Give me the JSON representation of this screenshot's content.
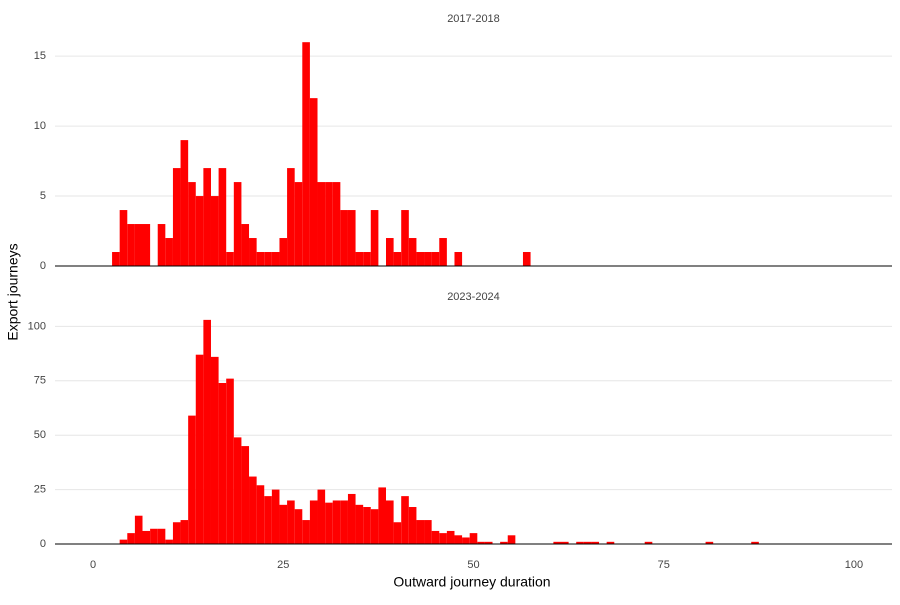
{
  "chart_data": {
    "type": "histogram",
    "xlabel": "Outward journey duration",
    "ylabel": "Export journeys",
    "color": "#ff0000",
    "grid": true,
    "xlim": [
      -5,
      105
    ],
    "xticks": [
      0,
      25,
      50,
      75,
      100
    ],
    "facets": [
      {
        "title": "2017-2018",
        "ylim": [
          0,
          16.8
        ],
        "yticks": [
          0,
          5,
          10,
          15
        ],
        "bins": [
          2.5,
          3.5,
          4.5,
          5.5,
          6.5,
          7.5,
          8.5,
          9.5,
          10.5,
          11.5,
          12.5,
          13.5,
          14.5,
          15.5,
          16.5,
          17.5,
          18.5,
          19.5,
          20.5,
          21.5,
          22.5,
          23.5,
          24.5,
          25.5,
          26.5,
          27.5,
          28.5,
          29.5,
          30.5,
          31.5,
          32.5,
          33.5,
          34.5,
          35.5,
          36.5,
          37.5,
          38.5,
          39.5,
          40.5,
          41.5,
          42.5,
          43.5,
          44.5,
          45.5,
          46.5,
          47.5,
          48.5,
          49.5,
          50.5,
          51.5,
          52.5,
          53.5,
          54.5,
          55.5,
          56.5,
          57.5
        ],
        "counts": [
          1,
          4,
          3,
          3,
          3,
          0,
          3,
          2,
          7,
          9,
          6,
          5,
          7,
          5,
          7,
          1,
          6,
          3,
          2,
          1,
          1,
          1,
          2,
          7,
          6,
          16,
          12,
          6,
          6,
          6,
          4,
          4,
          1,
          1,
          4,
          0,
          2,
          1,
          4,
          2,
          1,
          1,
          1,
          2,
          0,
          1,
          0,
          0,
          0,
          0,
          0,
          0,
          0,
          0,
          1
        ]
      },
      {
        "title": "2023-2024",
        "ylim": [
          0,
          108
        ],
        "yticks": [
          0,
          25,
          50,
          75,
          100
        ],
        "bins": [
          3.5,
          4.5,
          5.5,
          6.5,
          7.5,
          8.5,
          9.5,
          10.5,
          11.5,
          12.5,
          13.5,
          14.5,
          15.5,
          16.5,
          17.5,
          18.5,
          19.5,
          20.5,
          21.5,
          22.5,
          23.5,
          24.5,
          25.5,
          26.5,
          27.5,
          28.5,
          29.5,
          30.5,
          31.5,
          32.5,
          33.5,
          34.5,
          35.5,
          36.5,
          37.5,
          38.5,
          39.5,
          40.5,
          41.5,
          42.5,
          43.5,
          44.5,
          45.5,
          46.5,
          47.5,
          48.5,
          49.5,
          50.5,
          51.5,
          52.5,
          53.5,
          54.5,
          55.5,
          56.5,
          57.5,
          58.5,
          59.5,
          60.5,
          61.5,
          62.5,
          63.5,
          64.5,
          65.5,
          66.5,
          67.5,
          68.5,
          69.5,
          70.5,
          71.5,
          72.5,
          73.5,
          74.5,
          75.5,
          76.5,
          77.5,
          78.5,
          79.5,
          80.5,
          81.5,
          82.5,
          83.5,
          84.5,
          85.5,
          86.5,
          87.5
        ],
        "counts": [
          2,
          5,
          13,
          6,
          7,
          7,
          2,
          10,
          11,
          59,
          87,
          103,
          86,
          74,
          76,
          49,
          45,
          31,
          27,
          22,
          25,
          18,
          20,
          16,
          11,
          20,
          25,
          19,
          20,
          20,
          23,
          18,
          17,
          16,
          26,
          20,
          10,
          22,
          17,
          11,
          11,
          6,
          5,
          6,
          4,
          3,
          5,
          1,
          1,
          0,
          1,
          4,
          0,
          0,
          0,
          0,
          0,
          1,
          1,
          0,
          1,
          1,
          1,
          0,
          1,
          0,
          0,
          0,
          0,
          1,
          0,
          0,
          0,
          0,
          0,
          0,
          0,
          1,
          0,
          0,
          0,
          0,
          0,
          1
        ]
      }
    ]
  }
}
